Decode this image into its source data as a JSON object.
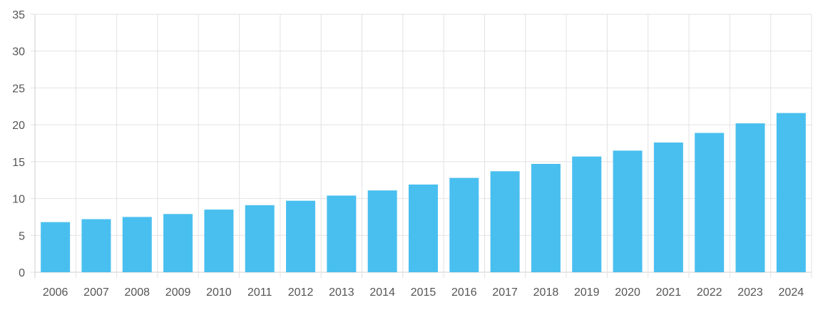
{
  "chart_data": {
    "type": "bar",
    "title": "",
    "xlabel": "",
    "ylabel": "",
    "categories": [
      "2006",
      "2007",
      "2008",
      "2009",
      "2010",
      "2011",
      "2012",
      "2013",
      "2014",
      "2015",
      "2016",
      "2017",
      "2018",
      "2019",
      "2020",
      "2021",
      "2022",
      "2023",
      "2024"
    ],
    "values": [
      6.8,
      7.2,
      7.5,
      7.9,
      8.5,
      9.1,
      9.7,
      10.4,
      11.1,
      11.9,
      12.8,
      13.7,
      14.7,
      15.7,
      16.5,
      17.6,
      18.9,
      20.2,
      21.6
    ],
    "ylim": [
      0,
      35
    ],
    "yticks": [
      "0",
      "5",
      "10",
      "15",
      "20",
      "25",
      "30",
      "35"
    ],
    "grid": true,
    "colors": {
      "bar": "#49bfef"
    }
  }
}
